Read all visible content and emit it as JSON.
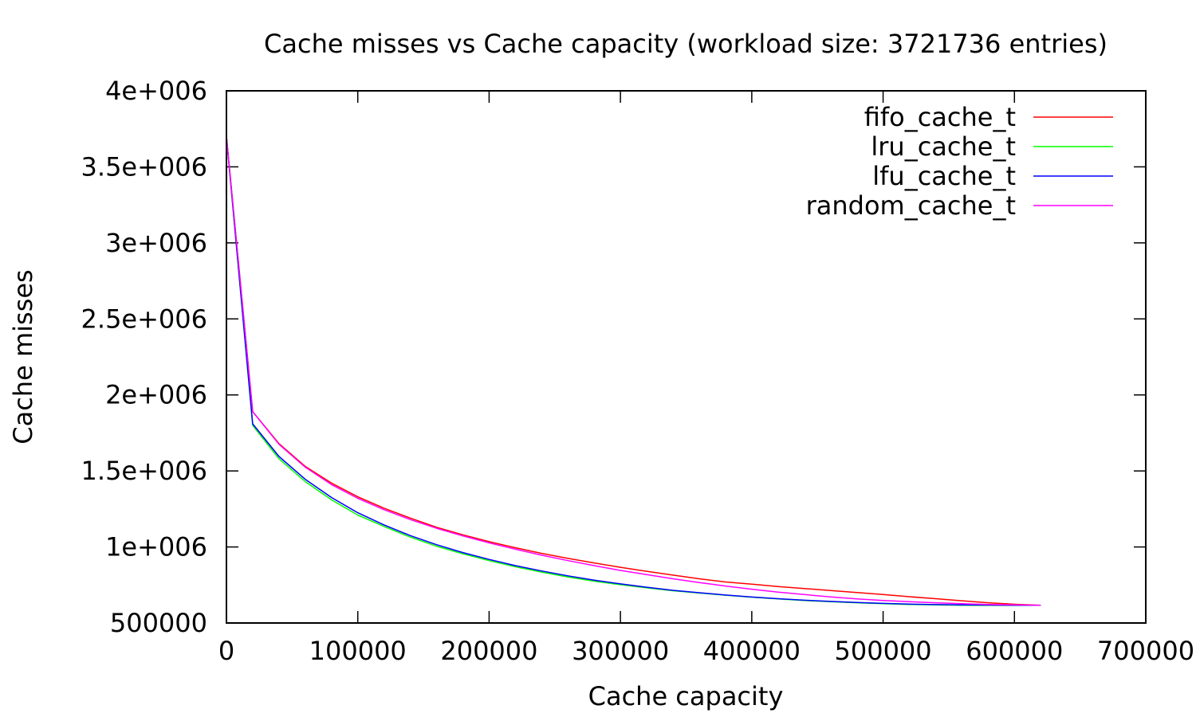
{
  "chart_data": {
    "type": "line",
    "title": "Cache misses vs Cache capacity (workload size: 3721736 entries)",
    "xlabel": "Cache capacity",
    "ylabel": "Cache misses",
    "xlim": [
      0,
      700000
    ],
    "ylim": [
      500000,
      4000000
    ],
    "x_ticks": [
      0,
      100000,
      200000,
      300000,
      400000,
      500000,
      600000,
      700000
    ],
    "x_tick_labels": [
      "0",
      "100000",
      "200000",
      "300000",
      "400000",
      "500000",
      "600000",
      "700000"
    ],
    "y_ticks": [
      500000,
      1000000,
      1500000,
      2000000,
      2500000,
      3000000,
      3500000,
      4000000
    ],
    "y_tick_labels": [
      "500000",
      "1e+006",
      "1.5e+006",
      "2e+006",
      "2.5e+006",
      "3e+006",
      "3.5e+006",
      "4e+006"
    ],
    "grid": false,
    "legend_position": "top-right",
    "x": [
      0,
      20000,
      40000,
      60000,
      80000,
      100000,
      120000,
      140000,
      160000,
      180000,
      200000,
      220000,
      240000,
      260000,
      280000,
      300000,
      320000,
      340000,
      360000,
      380000,
      400000,
      420000,
      440000,
      460000,
      480000,
      500000,
      520000,
      540000,
      560000,
      580000,
      600000,
      620000
    ],
    "series": [
      {
        "name": "fifo_cache_t",
        "color": "#ff0000",
        "values": [
          3700000,
          1890000,
          1680000,
          1530000,
          1420000,
          1330000,
          1255000,
          1190000,
          1130000,
          1080000,
          1035000,
          995000,
          958000,
          925000,
          895000,
          866000,
          840000,
          815000,
          791000,
          770000,
          755000,
          740000,
          727000,
          713000,
          700000,
          687000,
          673000,
          660000,
          646000,
          633000,
          623000,
          617000
        ]
      },
      {
        "name": "lru_cache_t",
        "color": "#00ff00",
        "values": [
          3700000,
          1800000,
          1580000,
          1430000,
          1310000,
          1210000,
          1135000,
          1065000,
          1005000,
          955000,
          910000,
          870000,
          835000,
          803000,
          775000,
          752000,
          731000,
          712000,
          697000,
          683000,
          670000,
          658000,
          648000,
          640000,
          633000,
          627000,
          622000,
          619000,
          617000,
          616000,
          616000,
          617000
        ]
      },
      {
        "name": "lfu_cache_t",
        "color": "#0000ff",
        "values": [
          3700000,
          1810000,
          1595000,
          1445000,
          1325000,
          1225000,
          1145000,
          1075000,
          1015000,
          963000,
          918000,
          877000,
          842000,
          810000,
          782000,
          757000,
          735000,
          715000,
          699000,
          684000,
          671000,
          660000,
          650000,
          642000,
          635000,
          629000,
          624000,
          621000,
          619000,
          618000,
          617000,
          617000
        ]
      },
      {
        "name": "random_cache_t",
        "color": "#ff00ff",
        "values": [
          3700000,
          1890000,
          1675000,
          1525000,
          1410000,
          1320000,
          1245000,
          1180000,
          1123000,
          1073000,
          1027000,
          985000,
          946000,
          910000,
          877000,
          846000,
          818000,
          791000,
          766000,
          743000,
          722000,
          703000,
          687000,
          672000,
          659000,
          648000,
          640000,
          633000,
          627000,
          622000,
          619000,
          617000
        ]
      }
    ]
  }
}
